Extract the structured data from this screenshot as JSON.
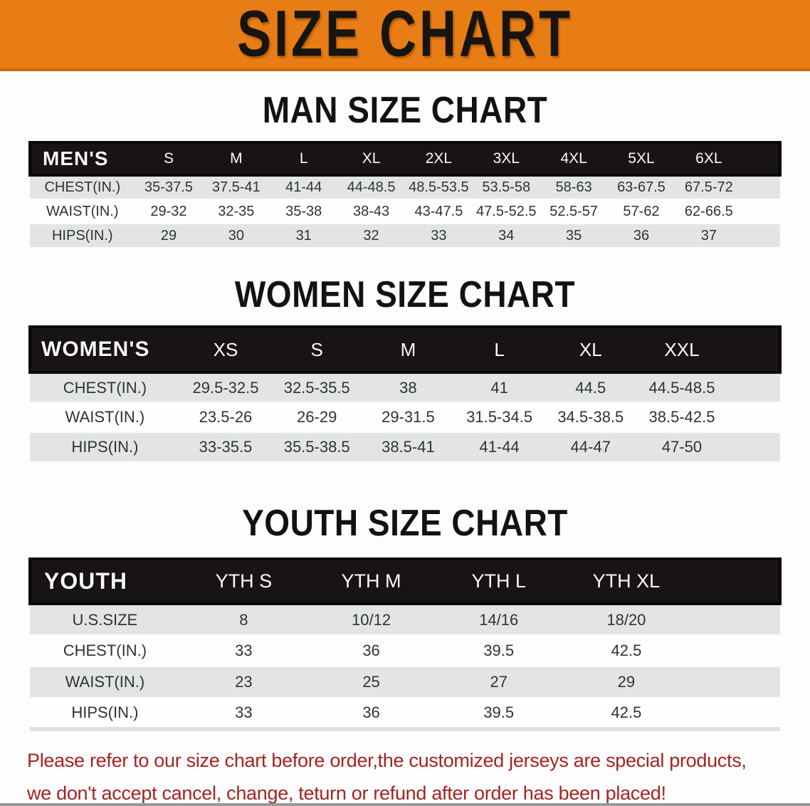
{
  "banner": {
    "title": "SIZE CHART",
    "bg_color": "#e87d15"
  },
  "sections": [
    {
      "id": "men",
      "heading": "MAN SIZE CHART",
      "corner_label": "MEN'S",
      "columns": [
        "S",
        "M",
        "L",
        "XL",
        "2XL",
        "3XL",
        "4XL",
        "5XL",
        "6XL"
      ],
      "rows": [
        {
          "label": "CHEST(IN.)",
          "values": [
            "35-37.5",
            "37.5-41",
            "41-44",
            "44-48.5",
            "48.5-53.5",
            "53.5-58",
            "58-63",
            "63-67.5",
            "67.5-72"
          ]
        },
        {
          "label": "WAIST(IN.)",
          "values": [
            "29-32",
            "32-35",
            "35-38",
            "38-43",
            "43-47.5",
            "47.5-52.5",
            "52.5-57",
            "57-62",
            "62-66.5"
          ]
        },
        {
          "label": "HIPS(IN.)",
          "values": [
            "29",
            "30",
            "31",
            "32",
            "33",
            "34",
            "35",
            "36",
            "37"
          ]
        }
      ]
    },
    {
      "id": "women",
      "heading": "WOMEN SIZE CHART",
      "corner_label": "WOMEN'S",
      "columns": [
        "XS",
        "S",
        "M",
        "L",
        "XL",
        "XXL"
      ],
      "rows": [
        {
          "label": "CHEST(IN.)",
          "values": [
            "29.5-32.5",
            "32.5-35.5",
            "38",
            "41",
            "44.5",
            "44.5-48.5"
          ]
        },
        {
          "label": "WAIST(IN.)",
          "values": [
            "23.5-26",
            "26-29",
            "29-31.5",
            "31.5-34.5",
            "34.5-38.5",
            "38.5-42.5"
          ]
        },
        {
          "label": "HIPS(IN.)",
          "values": [
            "33-35.5",
            "35.5-38.5",
            "38.5-41",
            "41-44",
            "44-47",
            "47-50"
          ]
        }
      ]
    },
    {
      "id": "youth",
      "heading": "YOUTH SIZE CHART",
      "corner_label": "YOUTH",
      "columns": [
        "YTH S",
        "YTH M",
        "YTH L",
        "YTH XL"
      ],
      "rows": [
        {
          "label": "U.S.SIZE",
          "values": [
            "8",
            "10/12",
            "14/16",
            "18/20"
          ]
        },
        {
          "label": "CHEST(IN.)",
          "values": [
            "33",
            "36",
            "39.5",
            "42.5"
          ]
        },
        {
          "label": "WAIST(IN.)",
          "values": [
            "23",
            "25",
            "27",
            "29"
          ]
        },
        {
          "label": "HIPS(IN.)",
          "values": [
            "33",
            "36",
            "39.5",
            "42.5"
          ]
        }
      ]
    }
  ],
  "footer": {
    "line1": "Please refer to our size chart before order,the customized jerseys are special products,",
    "line2": "we don't accept cancel, change, teturn or refund after order has been placed!"
  },
  "colors": {
    "banner_orange": "#e87d15",
    "banner_border": "#c86b0e",
    "header_bar_black": "#171413",
    "stripe_gray": "#e3e5e5",
    "footer_red": "#a32421",
    "bottom_line_gray": "#9a9a9a"
  }
}
